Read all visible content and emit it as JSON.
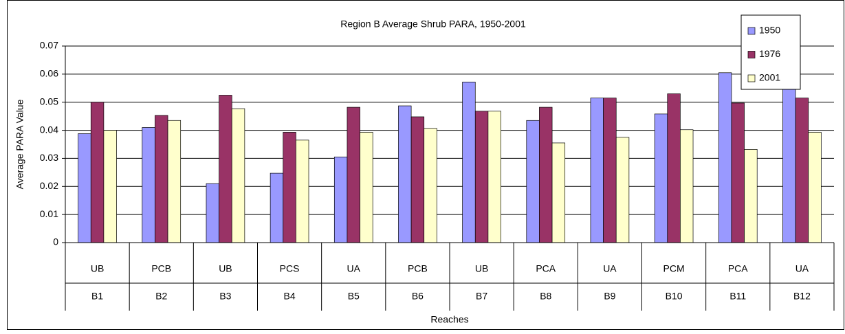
{
  "chart_data": {
    "type": "bar",
    "title": "Region B Average Shrub PARA, 1950-2001",
    "x_label": "Reaches",
    "y_label": "Average PARA Value",
    "categories": [
      "UB",
      "PCB",
      "UB",
      "PCS",
      "UA",
      "PCB",
      "UB",
      "PCA",
      "UA",
      "PCM",
      "PCA",
      "UA"
    ],
    "category_groups": [
      "B1",
      "B2",
      "B3",
      "B4",
      "B5",
      "B6",
      "B7",
      "B8",
      "B9",
      "B10",
      "B11",
      "B12"
    ],
    "series": [
      {
        "name": "1950",
        "color": "#9999ff",
        "values": [
          0.0388,
          0.041,
          0.021,
          0.0247,
          0.0305,
          0.0487,
          0.0572,
          0.0435,
          0.0515,
          0.0458,
          0.0605,
          0.0567
        ]
      },
      {
        "name": "1976",
        "color": "#993366",
        "values": [
          0.05,
          0.0453,
          0.0525,
          0.0393,
          0.0482,
          0.0448,
          0.0468,
          0.0482,
          0.0515,
          0.053,
          0.0497,
          0.0515
        ]
      },
      {
        "name": "2001",
        "color": "#ffffcc",
        "values": [
          0.04,
          0.0435,
          0.0477,
          0.0365,
          0.0393,
          0.0407,
          0.0468,
          0.0355,
          0.0375,
          0.0402,
          0.0332,
          0.0393
        ]
      }
    ],
    "ylim": [
      0,
      0.07
    ],
    "yticks": [
      0,
      0.01,
      0.02,
      0.03,
      0.04,
      0.05,
      0.06,
      0.07
    ],
    "grid": true,
    "legend": "top-right"
  }
}
